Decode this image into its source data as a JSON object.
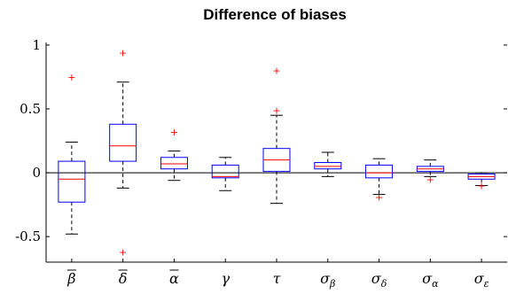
{
  "chart_data": {
    "type": "boxplot",
    "title": "Difference of biases",
    "xlabel": "",
    "ylabel": "",
    "ylim": [
      -0.7,
      1.02
    ],
    "yticks": [
      "-0.5",
      "0",
      "0.5",
      "1"
    ],
    "ytick_values": [
      -0.5,
      0,
      0.5,
      1
    ],
    "zero_line": true,
    "grid": false,
    "colors": {
      "box": "#0000ff",
      "median": "#ff0000",
      "outlier": "#ff0000",
      "whisker": "#000000",
      "axis": "#000000"
    },
    "categories": [
      {
        "label": "β̄",
        "base": "β",
        "bar": true,
        "sub": ""
      },
      {
        "label": "δ̄",
        "base": "δ",
        "bar": true,
        "sub": ""
      },
      {
        "label": "ᾱ",
        "base": "α",
        "bar": true,
        "sub": ""
      },
      {
        "label": "γ",
        "base": "γ",
        "bar": false,
        "sub": ""
      },
      {
        "label": "τ",
        "base": "τ",
        "bar": false,
        "sub": ""
      },
      {
        "label": "σβ",
        "base": "σ",
        "bar": false,
        "sub": "β"
      },
      {
        "label": "σδ",
        "base": "σ",
        "bar": false,
        "sub": "δ"
      },
      {
        "label": "σα",
        "base": "σ",
        "bar": false,
        "sub": "α"
      },
      {
        "label": "σε",
        "base": "σ",
        "bar": false,
        "sub": "ε"
      }
    ],
    "boxes": [
      {
        "whisker_low": -0.48,
        "q1": -0.23,
        "median": -0.05,
        "q3": 0.09,
        "whisker_high": 0.24,
        "outliers": [
          0.75
        ]
      },
      {
        "whisker_low": -0.12,
        "q1": 0.09,
        "median": 0.21,
        "q3": 0.38,
        "whisker_high": 0.71,
        "outliers": [
          0.94,
          -0.62
        ]
      },
      {
        "whisker_low": -0.06,
        "q1": 0.03,
        "median": 0.07,
        "q3": 0.12,
        "whisker_high": 0.17,
        "outliers": [
          0.32
        ]
      },
      {
        "whisker_low": -0.14,
        "q1": -0.04,
        "median": -0.03,
        "q3": 0.06,
        "whisker_high": 0.12,
        "outliers": []
      },
      {
        "whisker_low": -0.24,
        "q1": 0.01,
        "median": 0.1,
        "q3": 0.19,
        "whisker_high": 0.45,
        "outliers": [
          0.8,
          0.49
        ]
      },
      {
        "whisker_low": -0.03,
        "q1": 0.03,
        "median": 0.05,
        "q3": 0.08,
        "whisker_high": 0.16,
        "outliers": []
      },
      {
        "whisker_low": -0.17,
        "q1": -0.04,
        "median": 0.0,
        "q3": 0.06,
        "whisker_high": 0.11,
        "outliers": [
          -0.19
        ]
      },
      {
        "whisker_low": -0.03,
        "q1": 0.01,
        "median": 0.03,
        "q3": 0.05,
        "whisker_high": 0.1,
        "outliers": [
          -0.05
        ]
      },
      {
        "whisker_low": -0.1,
        "q1": -0.05,
        "median": -0.03,
        "q3": -0.01,
        "whisker_high": 0.0,
        "outliers": [
          -0.1
        ]
      }
    ]
  }
}
